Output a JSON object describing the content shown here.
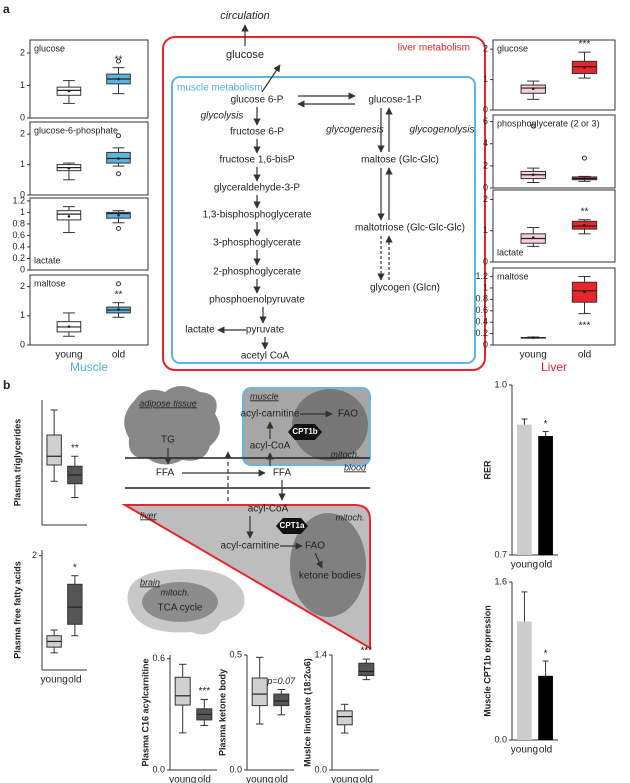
{
  "panel_a": {
    "label": "a",
    "muscle_label": "Muscle",
    "liver_label": "Liver",
    "diagram": {
      "circulation": "circulation",
      "glucose": "glucose",
      "liver_metabolism": "liver metabolism",
      "muscle_metabolism": "muscle metabolism",
      "glycolysis": "glycolysis",
      "glycogenesis": "glycogenesis",
      "glycogenolysis": "glycogenolysis",
      "lactate": "lactate",
      "glycolysis_steps": [
        "glucose 6-P",
        "fructose 6-P",
        "fructose 1,6-bisP",
        "glyceraldehyde-3-P",
        "1,3-bisphosphoglycerate",
        "3-phosphoglycerate",
        "2-phosphoglycerate",
        "phosphoenolpyruvate",
        "pyruvate",
        "acetyl CoA"
      ],
      "glycogen_steps": [
        "glucose-1-P",
        "maltose (Glc-Glc)",
        "maltotriose (Glc-Glc-Glc)",
        "glycogen (Glcn)"
      ]
    }
  },
  "panel_b": {
    "label": "b",
    "diagram": {
      "adipose_tissue": "adipose tissue",
      "tg": "TG",
      "muscle": "muscle",
      "muscle_acyl_carnitine": "acyl-carnitine",
      "muscle_fao": "FAO",
      "cpt1b": "CPT1b",
      "muscle_acyl_coa": "acyl-CoA",
      "muscle_mitoch": "mitoch.",
      "blood": "blood",
      "ffa_left": "FFA",
      "ffa_right": "FFA",
      "liver": "liver",
      "liver_acyl_coa": "acyl-CoA",
      "cpt1a": "CPT1a",
      "liver_mitoch": "mitoch.",
      "liver_acyl_carnitine": "acyl-carnitine",
      "liver_fao": "FAO",
      "ketone_bodies": "ketone bodies",
      "brain": "brain",
      "brain_mitoch": "mitoch.",
      "tca_cycle": "TCA cycle"
    }
  },
  "chart_data": [
    {
      "type": "box",
      "title": "glucose",
      "ylim": [
        0,
        2.4
      ],
      "yticks": [
        0,
        1,
        2
      ],
      "colors": [
        "#ffffff",
        "#5db3e0"
      ],
      "annotation": "**",
      "boxes": [
        {
          "min": 0.45,
          "q1": 0.7,
          "median": 0.85,
          "q3": 0.95,
          "max": 1.15,
          "mean": 0.83,
          "outliers": []
        },
        {
          "min": 0.75,
          "q1": 1.05,
          "median": 1.2,
          "q3": 1.35,
          "max": 1.55,
          "mean": 1.2,
          "outliers": [
            1.75
          ]
        }
      ]
    },
    {
      "type": "box",
      "title": "glucose-6-phosphate",
      "ylim": [
        0,
        2.4
      ],
      "yticks": [
        0,
        1,
        2
      ],
      "colors": [
        "#ffffff",
        "#5db3e0"
      ],
      "boxes": [
        {
          "min": 0.5,
          "q1": 0.8,
          "median": 0.9,
          "q3": 1.0,
          "max": 1.05,
          "mean": 0.88,
          "outliers": []
        },
        {
          "min": 0.95,
          "q1": 1.05,
          "median": 1.2,
          "q3": 1.4,
          "max": 1.55,
          "mean": 1.2,
          "outliers": [
            1.95,
            0.7
          ]
        }
      ]
    },
    {
      "type": "box",
      "title": "lactate",
      "ylim": [
        0,
        1.25
      ],
      "yticks": [
        0,
        0.2,
        0.4,
        0.6,
        0.8,
        1,
        1.2
      ],
      "colors": [
        "#ffffff",
        "#5db3e0"
      ],
      "boxes": [
        {
          "min": 0.65,
          "q1": 0.87,
          "median": 0.97,
          "q3": 1.03,
          "max": 1.1,
          "mean": 0.93,
          "outliers": []
        },
        {
          "min": 0.82,
          "q1": 0.9,
          "median": 0.98,
          "q3": 1.0,
          "max": 1.03,
          "mean": 0.95,
          "outliers": [
            0.72
          ]
        }
      ]
    },
    {
      "type": "box",
      "title": "maltose",
      "categories": [
        "young",
        "old"
      ],
      "ylim": [
        0,
        2.4
      ],
      "yticks": [
        0,
        1,
        2
      ],
      "colors": [
        "#ffffff",
        "#5db3e0"
      ],
      "annotation": "**",
      "boxes": [
        {
          "min": 0.3,
          "q1": 0.45,
          "median": 0.62,
          "q3": 0.8,
          "max": 1.1,
          "mean": 0.63,
          "outliers": []
        },
        {
          "min": 0.95,
          "q1": 1.1,
          "median": 1.2,
          "q3": 1.3,
          "max": 1.45,
          "mean": 1.22,
          "outliers": [
            2.1
          ]
        }
      ]
    },
    {
      "type": "box",
      "title": "glucose",
      "ylim": [
        0,
        2.3
      ],
      "yticks": [
        0,
        1,
        2
      ],
      "colors": [
        "#f7d0d6",
        "#e8252c"
      ],
      "annotation": "***",
      "boxes": [
        {
          "min": 0.35,
          "q1": 0.55,
          "median": 0.72,
          "q3": 0.82,
          "max": 0.95,
          "mean": 0.7,
          "outliers": []
        },
        {
          "min": 1.05,
          "q1": 1.2,
          "median": 1.42,
          "q3": 1.6,
          "max": 1.9,
          "mean": 1.4,
          "outliers": []
        }
      ]
    },
    {
      "type": "box",
      "title": "phosphoglycerate (2 or 3)",
      "ylim": [
        0,
        6.6
      ],
      "yticks": [
        0,
        2,
        4,
        6
      ],
      "colors": [
        "#f7d0d6",
        "#e8252c"
      ],
      "boxes": [
        {
          "min": 0.5,
          "q1": 0.85,
          "median": 1.2,
          "q3": 1.5,
          "max": 1.8,
          "mean": 1.2,
          "outliers": [
            5.6
          ]
        },
        {
          "min": 0.6,
          "q1": 0.75,
          "median": 0.85,
          "q3": 1.0,
          "max": 1.05,
          "mean": 0.85,
          "outliers": [
            2.7
          ]
        }
      ]
    },
    {
      "type": "box",
      "title": "lactate",
      "ylim": [
        0,
        2.3
      ],
      "yticks": [
        0,
        1,
        2
      ],
      "colors": [
        "#f7d0d6",
        "#e8252c"
      ],
      "annotation": "**",
      "boxes": [
        {
          "min": 0.5,
          "q1": 0.6,
          "median": 0.75,
          "q3": 0.9,
          "max": 1.1,
          "mean": 0.78,
          "outliers": []
        },
        {
          "min": 0.9,
          "q1": 1.05,
          "median": 1.15,
          "q3": 1.3,
          "max": 1.35,
          "mean": 1.18,
          "outliers": []
        }
      ]
    },
    {
      "type": "box",
      "title": "maltose",
      "categories": [
        "young",
        "old"
      ],
      "ylim": [
        0,
        1.35
      ],
      "yticks": [
        0,
        0.2,
        0.4,
        0.6,
        0.8,
        1,
        1.2
      ],
      "colors": [
        "#f7d0d6",
        "#e8252c"
      ],
      "annotation": "***",
      "boxes": [
        {
          "min": 0.12,
          "q1": 0.13,
          "median": 0.13,
          "q3": 0.13,
          "max": 0.14,
          "mean": 0.13,
          "outliers": []
        },
        {
          "min": 0.55,
          "q1": 0.75,
          "median": 0.95,
          "q3": 1.1,
          "max": 1.2,
          "mean": 0.93,
          "outliers": []
        }
      ]
    },
    {
      "type": "box",
      "title": "Plasma triglycerides",
      "ylim": [
        0,
        1
      ],
      "colors": [
        "#d0d0d0",
        "#555555"
      ],
      "annotation": "**",
      "boxes": [
        {
          "min": 0.35,
          "q1": 0.48,
          "median": 0.55,
          "q3": 0.72,
          "max": 0.92,
          "outliers": []
        },
        {
          "min": 0.22,
          "q1": 0.33,
          "median": 0.4,
          "q3": 0.47,
          "max": 0.55,
          "outliers": []
        }
      ]
    },
    {
      "type": "box",
      "title": "Plasma free fatty acids",
      "categories": [
        "young",
        "old"
      ],
      "ylim": [
        0,
        2.1
      ],
      "yticks": [
        2
      ],
      "colors": [
        "#d0d0d0",
        "#555555"
      ],
      "annotation": "*",
      "boxes": [
        {
          "min": 0.3,
          "q1": 0.4,
          "median": 0.5,
          "q3": 0.6,
          "max": 0.7,
          "outliers": []
        },
        {
          "min": 0.6,
          "q1": 0.8,
          "median": 1.1,
          "q3": 1.5,
          "max": 1.65,
          "outliers": []
        }
      ]
    },
    {
      "type": "box",
      "title": "Plasma C16 acylcarnitine",
      "categories": [
        "young",
        "old"
      ],
      "ylim": [
        0,
        0.62
      ],
      "yticks": [
        {
          "value": 0,
          "label": "0.0"
        },
        {
          "value": 0.6,
          "label": "0.6"
        }
      ],
      "colors": [
        "#d0d0d0",
        "#555555"
      ],
      "annotation": "***",
      "boxes": [
        {
          "min": 0.2,
          "q1": 0.35,
          "median": 0.4,
          "q3": 0.5,
          "max": 0.57,
          "outliers": []
        },
        {
          "min": 0.24,
          "q1": 0.27,
          "median": 0.3,
          "q3": 0.33,
          "max": 0.38,
          "outliers": []
        }
      ]
    },
    {
      "type": "box",
      "title": "Plasma ketone body",
      "categories": [
        "young",
        "old"
      ],
      "ylim": [
        0,
        0.5
      ],
      "yticks": [
        {
          "value": 0,
          "label": "0.0"
        },
        0.5
      ],
      "colors": [
        "#d0d0d0",
        "#555555"
      ],
      "annotation": "p=0.07",
      "boxes": [
        {
          "min": 0.2,
          "q1": 0.28,
          "median": 0.33,
          "q3": 0.4,
          "max": 0.49,
          "outliers": []
        },
        {
          "min": 0.24,
          "q1": 0.28,
          "median": 0.3,
          "q3": 0.33,
          "max": 0.35,
          "outliers": []
        }
      ]
    },
    {
      "type": "box",
      "title": "Muslce linoleate (18:2ω6)",
      "categories": [
        "young",
        "old"
      ],
      "ylim": [
        0,
        1.4
      ],
      "yticks": [
        {
          "value": 0,
          "label": "0.0"
        },
        1.4
      ],
      "colors": [
        "#d0d0d0",
        "#555555"
      ],
      "annotation": "***",
      "boxes": [
        {
          "min": 0.45,
          "q1": 0.55,
          "median": 0.65,
          "q3": 0.72,
          "max": 0.8,
          "outliers": []
        },
        {
          "min": 1.1,
          "q1": 1.15,
          "median": 1.2,
          "q3": 1.3,
          "max": 1.35,
          "outliers": []
        }
      ]
    },
    {
      "type": "bar",
      "title": "RER",
      "categories": [
        "young",
        "old"
      ],
      "ylim": [
        0.7,
        1.0
      ],
      "yticks": [
        0.7,
        {
          "value": 1.0,
          "label": "1.0"
        }
      ],
      "colors": [
        "#cccccc",
        "#000000"
      ],
      "annotation": "*",
      "values": [
        0.93,
        0.91
      ],
      "errors": [
        0.01,
        0.008
      ]
    },
    {
      "type": "bar",
      "title": "Muscle CPT1b expression",
      "categories": [
        "young",
        "old"
      ],
      "ylim": [
        0,
        1.6
      ],
      "yticks": [
        {
          "value": 0,
          "label": "0.0"
        },
        1.6
      ],
      "colors": [
        "#cccccc",
        "#000000"
      ],
      "annotation": "*",
      "values": [
        1.2,
        0.65
      ],
      "errors": [
        0.3,
        0.15
      ]
    }
  ]
}
